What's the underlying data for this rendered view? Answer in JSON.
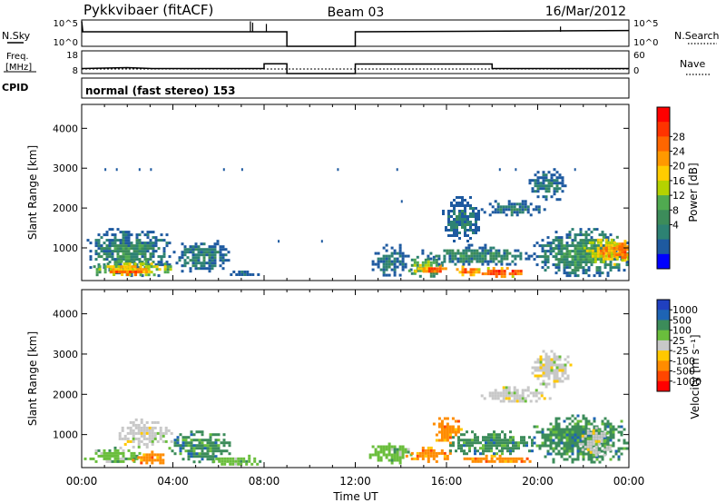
{
  "header": {
    "radar_title": "Pykkvibaer (fitACF)",
    "beam": "Beam 03",
    "date": "16/Mar/2012"
  },
  "sky_panel": {
    "left_label": "N.Sky",
    "right_label": "N.Search",
    "left_ticks": [
      "10^5",
      "10^0"
    ],
    "right_ticks": [
      "10^5",
      "10^0"
    ]
  },
  "freq_panel": {
    "left_label_1": "Freq.",
    "left_label_2": "[MHz]",
    "right_label": "Nave",
    "left_ticks": [
      "18",
      "8"
    ],
    "right_ticks": [
      "60",
      "0"
    ]
  },
  "cpid": {
    "label": "CPID",
    "text": "normal (fast stereo) 153"
  },
  "power_colorbar": {
    "title": "Power [dB]",
    "ticks": [
      "28",
      "24",
      "20",
      "16",
      "12",
      "8",
      "4"
    ],
    "colors": [
      "#ff0000",
      "#ff3300",
      "#ff6600",
      "#ff9900",
      "#ffcc00",
      "#b4d200",
      "#50aa50",
      "#3c8c5a",
      "#2d8273",
      "#1e5aa0",
      "#0000ff"
    ]
  },
  "velocity_colorbar": {
    "title": "Velocity [m s⁻¹]",
    "ticks": [
      "1000",
      "500",
      "100",
      "25",
      "-25",
      "-100",
      "-500",
      "-1000"
    ],
    "colors": [
      "#2040c0",
      "#1e64b4",
      "#3c8c5a",
      "#6abe3c",
      "#c8c8c8",
      "#ffc800",
      "#ff8c00",
      "#ff4600",
      "#ff0000"
    ]
  },
  "chart_data": [
    {
      "type": "line",
      "title": "N.Sky / N.Search",
      "x_units": "hours UT",
      "series": [
        {
          "name": "N.Sky",
          "points": [
            [
              0,
              0.95
            ],
            [
              0.05,
              0.55
            ],
            [
              9,
              0.55
            ],
            [
              9,
              0.0
            ],
            [
              12,
              0.0
            ],
            [
              12,
              0.55
            ],
            [
              24,
              0.6
            ]
          ]
        },
        {
          "name": "N.Search",
          "points": [
            [
              0,
              0.3
            ],
            [
              24,
              0.3
            ]
          ]
        }
      ]
    },
    {
      "type": "line",
      "title": "Freq / Nave",
      "x_units": "hours UT",
      "series": [
        {
          "name": "Freq",
          "points": [
            [
              0,
              10.2
            ],
            [
              2.0,
              10.6
            ],
            [
              3.1,
              10.2
            ],
            [
              8.0,
              10.2
            ],
            [
              8.0,
              12.3
            ],
            [
              9.0,
              12.3
            ],
            [
              9.0,
              8
            ],
            [
              12,
              8
            ],
            [
              12,
              12.2
            ],
            [
              18,
              12.2
            ],
            [
              18,
              10.2
            ],
            [
              24,
              10.2
            ]
          ]
        },
        {
          "name": "Nave",
          "points": [
            [
              0,
              12
            ],
            [
              24,
              12
            ]
          ]
        }
      ]
    },
    {
      "type": "heatmap",
      "title": "Power",
      "xlabel": "",
      "ylabel": "Slant Range [km]",
      "x_units": "hours UT",
      "xlim": [
        0,
        24
      ],
      "ylim": [
        180,
        4600
      ],
      "yticks": [
        1000,
        2000,
        3000,
        4000
      ],
      "value_scale": [
        0,
        32
      ],
      "blobs": [
        {
          "t0": 0.1,
          "t1": 3.9,
          "r0": 300,
          "r1": 1500,
          "v": 9
        },
        {
          "t0": 0.5,
          "t1": 3.9,
          "r0": 300,
          "r1": 700,
          "v": 20
        },
        {
          "t0": 1.0,
          "t1": 3.0,
          "r0": 350,
          "r1": 500,
          "v": 27
        },
        {
          "t0": 4.0,
          "t1": 6.5,
          "r0": 400,
          "r1": 1200,
          "v": 8
        },
        {
          "t0": 6.5,
          "t1": 7.8,
          "r0": 300,
          "r1": 500,
          "v": 6
        },
        {
          "t0": 12.6,
          "t1": 14.4,
          "r0": 300,
          "r1": 1100,
          "v": 6
        },
        {
          "t0": 14.2,
          "t1": 15.8,
          "r0": 300,
          "r1": 800,
          "v": 16
        },
        {
          "t0": 14.6,
          "t1": 16.2,
          "r0": 380,
          "r1": 580,
          "v": 27
        },
        {
          "t0": 16.3,
          "t1": 17.5,
          "r0": 300,
          "r1": 560,
          "v": 26
        },
        {
          "t0": 17.3,
          "t1": 19.6,
          "r0": 310,
          "r1": 520,
          "v": 29
        },
        {
          "t0": 14.9,
          "t1": 19.7,
          "r0": 600,
          "r1": 1100,
          "v": 9
        },
        {
          "t0": 15.8,
          "t1": 17.4,
          "r0": 1200,
          "r1": 2300,
          "v": 7
        },
        {
          "t0": 17.5,
          "t1": 20.4,
          "r0": 1800,
          "r1": 2200,
          "v": 7
        },
        {
          "t0": 19.6,
          "t1": 21.2,
          "r0": 2200,
          "r1": 3000,
          "v": 7
        },
        {
          "t0": 19.8,
          "t1": 24.0,
          "r0": 300,
          "r1": 1500,
          "v": 10
        },
        {
          "t0": 22.0,
          "t1": 24.0,
          "r0": 600,
          "r1": 1300,
          "v": 22
        },
        {
          "t0": 23.3,
          "t1": 24.0,
          "r0": 700,
          "r1": 1200,
          "v": 27
        }
      ],
      "scatter_points": [
        [
          1.0,
          3000
        ],
        [
          1.5,
          3000
        ],
        [
          2.5,
          3000
        ],
        [
          3.0,
          3000
        ],
        [
          6.2,
          3000
        ],
        [
          7.0,
          3000
        ],
        [
          11.2,
          3000
        ],
        [
          13.8,
          3000
        ],
        [
          18.3,
          3000
        ],
        [
          19.0,
          3000
        ],
        [
          21.6,
          3000
        ],
        [
          10.5,
          1200
        ],
        [
          14.0,
          2200
        ],
        [
          8.6,
          1200
        ]
      ]
    },
    {
      "type": "heatmap",
      "title": "Velocity",
      "xlabel": "Time UT",
      "ylabel": "Slant Range [km]",
      "x_units": "hours UT",
      "xlim": [
        0,
        24
      ],
      "ylim": [
        180,
        4600
      ],
      "xticks": [
        "00:00",
        "04:00",
        "08:00",
        "12:00",
        "16:00",
        "20:00",
        "00:00"
      ],
      "yticks": [
        1000,
        2000,
        3000,
        4000
      ],
      "blobs": [
        {
          "t0": 0.1,
          "t1": 2.5,
          "r0": 300,
          "r1": 700,
          "c": 3
        },
        {
          "t0": 1.5,
          "t1": 3.9,
          "r0": 700,
          "r1": 1400,
          "c": 4
        },
        {
          "t0": 2.2,
          "t1": 3.7,
          "r0": 300,
          "r1": 600,
          "c": 6
        },
        {
          "t0": 3.8,
          "t1": 6.5,
          "r0": 350,
          "r1": 1100,
          "c": 2
        },
        {
          "t0": 5.5,
          "t1": 7.8,
          "r0": 250,
          "r1": 500,
          "c": 3
        },
        {
          "t0": 12.6,
          "t1": 14.4,
          "r0": 300,
          "r1": 800,
          "c": 3
        },
        {
          "t0": 14.2,
          "t1": 16.2,
          "r0": 350,
          "r1": 700,
          "c": 6
        },
        {
          "t0": 15.4,
          "t1": 16.6,
          "r0": 800,
          "r1": 1500,
          "c": 6
        },
        {
          "t0": 16.5,
          "t1": 19.7,
          "r0": 300,
          "r1": 500,
          "c": 6
        },
        {
          "t0": 16.0,
          "t1": 19.8,
          "r0": 500,
          "r1": 1100,
          "c": 2
        },
        {
          "t0": 17.5,
          "t1": 20.5,
          "r0": 1800,
          "r1": 2200,
          "c": 4
        },
        {
          "t0": 19.6,
          "t1": 21.4,
          "r0": 2200,
          "r1": 3100,
          "c": 4
        },
        {
          "t0": 19.8,
          "t1": 24.0,
          "r0": 300,
          "r1": 1500,
          "c": 2
        },
        {
          "t0": 21.8,
          "t1": 23.2,
          "r0": 500,
          "r1": 1200,
          "c": 4
        }
      ]
    }
  ]
}
